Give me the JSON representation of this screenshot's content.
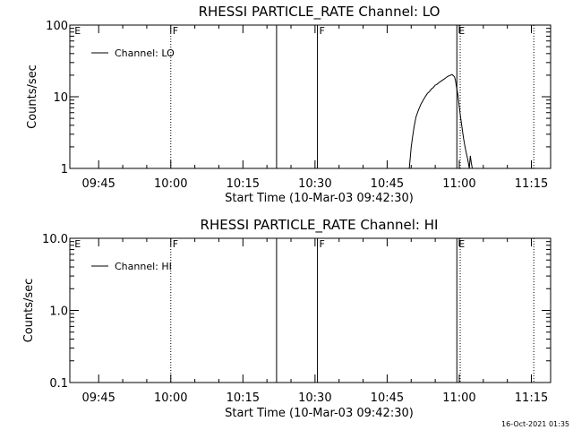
{
  "footer_timestamp": "16-Oct-2021 01:35",
  "chart_data": [
    {
      "type": "line",
      "title": "RHESSI PARTICLE_RATE Channel: LO",
      "xlabel": "Start Time (10-Mar-03 09:42:30)",
      "ylabel": "Counts/sec",
      "yscale": "log",
      "ylim": [
        1,
        100
      ],
      "xlim_minutes": [
        -3,
        97
      ],
      "x_ticks": [
        {
          "t": 3,
          "label": "09:45"
        },
        {
          "t": 18,
          "label": "10:00"
        },
        {
          "t": 33,
          "label": "10:15"
        },
        {
          "t": 48,
          "label": "10:30"
        },
        {
          "t": 63,
          "label": "10:45"
        },
        {
          "t": 78,
          "label": "11:00"
        },
        {
          "t": 93,
          "label": "11:15"
        }
      ],
      "y_ticks": [
        {
          "v": 1,
          "label": "1"
        },
        {
          "v": 10,
          "label": "10"
        },
        {
          "v": 100,
          "label": "100"
        }
      ],
      "legend": {
        "entry": "Channel: LO",
        "placement": "top-left"
      },
      "series": [
        {
          "name": "Channel: LO",
          "x": [
            67.6,
            67.8,
            68.0,
            68.3,
            68.6,
            69.0,
            69.5,
            70.0,
            70.5,
            71.0,
            71.4,
            71.8,
            72.2,
            72.6,
            73.0,
            73.4,
            73.8,
            74.2,
            74.6,
            75.0,
            75.3,
            75.6,
            75.9,
            76.2,
            76.5,
            76.8,
            77.0,
            77.2,
            77.4,
            77.7,
            78.0,
            78.3,
            78.6,
            78.9,
            79.2,
            79.5,
            79.8,
            80.1,
            80.3,
            80.5,
            80.7
          ],
          "y": [
            1.0,
            1.4,
            2.0,
            2.8,
            3.8,
            5.2,
            6.5,
            7.8,
            9.0,
            10.2,
            11.2,
            11.8,
            12.8,
            13.5,
            14.5,
            15.0,
            15.8,
            16.5,
            17.2,
            18.0,
            18.6,
            19.2,
            19.6,
            20.0,
            20.4,
            19.6,
            19.0,
            17.0,
            14.0,
            10.8,
            7.2,
            5.0,
            3.6,
            2.6,
            2.0,
            1.6,
            1.3,
            1.0,
            1.5,
            1.2,
            1.0
          ]
        }
      ],
      "annotations": [
        {
          "t": -2.4,
          "text": "E",
          "line": "none"
        },
        {
          "t": 18.0,
          "text": "F",
          "line": "dotted"
        },
        {
          "t": 40.0,
          "text": "",
          "line": "solid"
        },
        {
          "t": 48.5,
          "text": "F",
          "line": "solid"
        },
        {
          "t": 77.5,
          "text": "E",
          "line": "solid"
        },
        {
          "t": 78.2,
          "text": "",
          "line": "dotted"
        },
        {
          "t": 93.5,
          "text": "",
          "line": "dotted"
        }
      ]
    },
    {
      "type": "line",
      "title": "RHESSI PARTICLE_RATE Channel: HI",
      "xlabel": "Start Time (10-Mar-03 09:42:30)",
      "ylabel": "Counts/sec",
      "yscale": "log",
      "ylim": [
        0.1,
        10
      ],
      "xlim_minutes": [
        -3,
        97
      ],
      "x_ticks": [
        {
          "t": 3,
          "label": "09:45"
        },
        {
          "t": 18,
          "label": "10:00"
        },
        {
          "t": 33,
          "label": "10:15"
        },
        {
          "t": 48,
          "label": "10:30"
        },
        {
          "t": 63,
          "label": "10:45"
        },
        {
          "t": 78,
          "label": "11:00"
        },
        {
          "t": 93,
          "label": "11:15"
        }
      ],
      "y_ticks": [
        {
          "v": 0.1,
          "label": "0.1"
        },
        {
          "v": 1,
          "label": "1.0"
        },
        {
          "v": 10,
          "label": "10.0"
        }
      ],
      "legend": {
        "entry": "Channel: HI",
        "placement": "top-left"
      },
      "series": [
        {
          "name": "Channel: HI",
          "x": [],
          "y": []
        }
      ],
      "annotations": [
        {
          "t": -2.4,
          "text": "E",
          "line": "none"
        },
        {
          "t": 18.0,
          "text": "F",
          "line": "dotted"
        },
        {
          "t": 40.0,
          "text": "",
          "line": "solid"
        },
        {
          "t": 48.5,
          "text": "F",
          "line": "solid"
        },
        {
          "t": 77.5,
          "text": "E",
          "line": "solid"
        },
        {
          "t": 78.2,
          "text": "",
          "line": "dotted"
        },
        {
          "t": 93.5,
          "text": "",
          "line": "dotted"
        }
      ]
    }
  ]
}
